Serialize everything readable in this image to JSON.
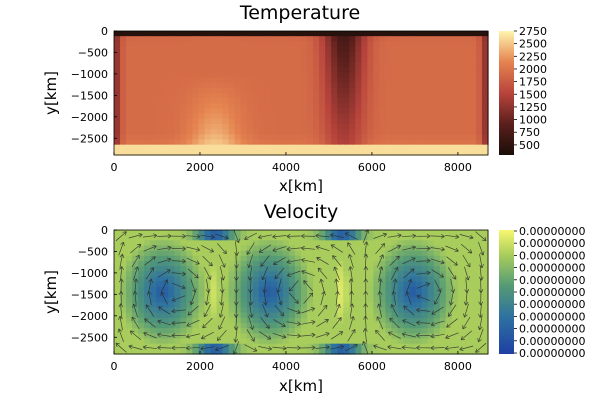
{
  "chart_data": [
    {
      "type": "heatmap",
      "title": "Temperature",
      "xlabel": "x[km]",
      "ylabel": "y[km]",
      "xlim": [
        0,
        8700
      ],
      "ylim": [
        -2890,
        0
      ],
      "xticks": [
        0,
        2000,
        4000,
        6000,
        8000
      ],
      "xtick_labels": [
        "0",
        "2000",
        "4000",
        "6000",
        "8000"
      ],
      "yticks": [
        0,
        -500,
        -1000,
        -1500,
        -2000,
        -2500
      ],
      "ytick_labels": [
        "0",
        "−500",
        "−1000",
        "−1500",
        "−2000",
        "−2500"
      ],
      "colorbar": {
        "colormap": "thermal",
        "range": [
          300,
          2750
        ],
        "ticks": [
          500,
          750,
          1000,
          1250,
          1500,
          1750,
          2000,
          2250,
          2500,
          2750
        ],
        "tick_labels": [
          "500",
          "750",
          "1000",
          "1250",
          "1500",
          "1750",
          "2000",
          "2250",
          "2500",
          "2750"
        ]
      },
      "grid": false
    },
    {
      "type": "heatmap",
      "title": "Velocity",
      "xlabel": "x[km]",
      "ylabel": "y[km]",
      "xlim": [
        0,
        8700
      ],
      "ylim": [
        -2890,
        0
      ],
      "xticks": [
        0,
        2000,
        4000,
        6000,
        8000
      ],
      "xtick_labels": [
        "0",
        "2000",
        "4000",
        "6000",
        "8000"
      ],
      "yticks": [
        0,
        -500,
        -1000,
        -1500,
        -2000,
        -2500
      ],
      "ytick_labels": [
        "0",
        "−500",
        "−1000",
        "−1500",
        "−2000",
        "−2500"
      ],
      "overlay": "velocity arrows",
      "colorbar": {
        "colormap": "viridis-like",
        "tick_labels": [
          "0.00000000",
          "0.00000000",
          "0.00000000",
          "0.00000000",
          "0.00000000",
          "0.00000000",
          "0.00000000",
          "0.00000000",
          "0.00000000",
          "0.00000000",
          "0.00000000"
        ]
      },
      "grid": false
    }
  ]
}
